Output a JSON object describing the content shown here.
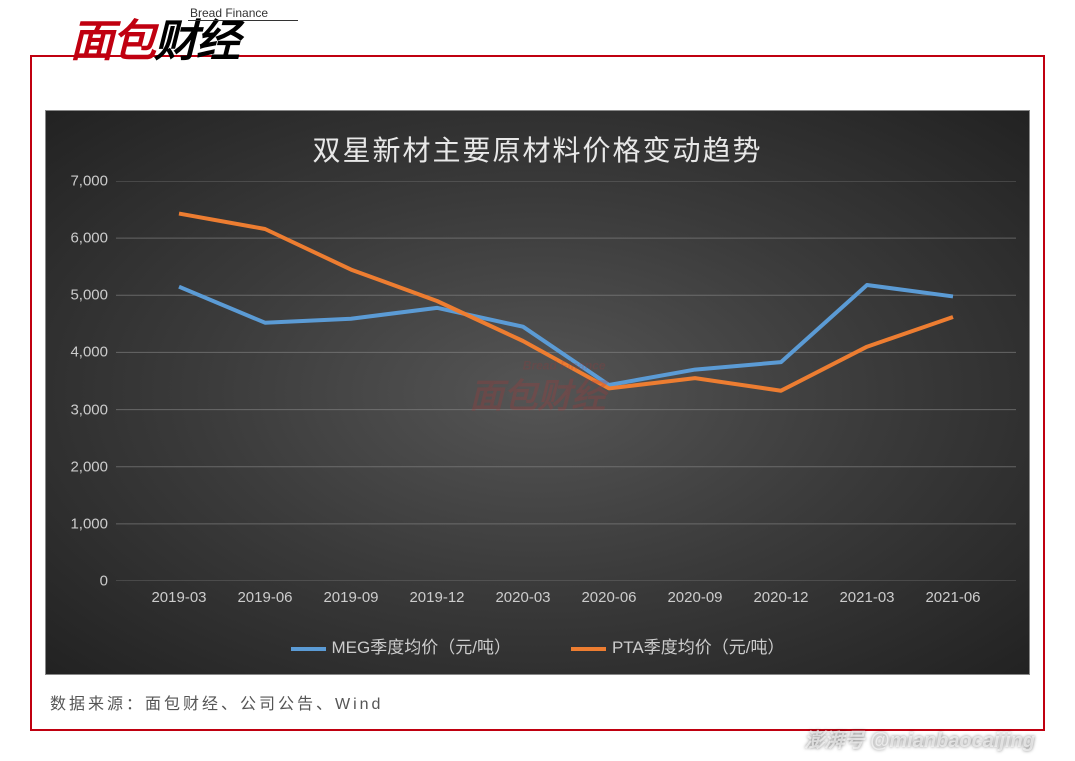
{
  "logo": {
    "cn_red": "面包",
    "cn_black": "财经",
    "en": "Bread Finance"
  },
  "chart": {
    "type": "line",
    "title": "双星新材主要原材料价格变动趋势",
    "background_gradient": [
      "#555555",
      "#3a3a3a",
      "#222222"
    ],
    "title_color": "#e8e8e8",
    "title_fontsize": 28,
    "axis_label_color": "#cccccc",
    "axis_label_fontsize": 15,
    "gridline_color": "#888888",
    "gridline_width": 1,
    "tickmark_color": "#888888",
    "line_width": 4,
    "ylim": [
      0,
      7000
    ],
    "ytick_step": 1000,
    "yticks": [
      0,
      1000,
      2000,
      3000,
      4000,
      5000,
      6000,
      7000
    ],
    "ytick_labels": [
      "0",
      "1,000",
      "2,000",
      "3,000",
      "4,000",
      "5,000",
      "6,000",
      "7,000"
    ],
    "categories": [
      "2019-03",
      "2019-06",
      "2019-09",
      "2019-12",
      "2020-03",
      "2020-06",
      "2020-09",
      "2020-12",
      "2021-03",
      "2021-06"
    ],
    "series": [
      {
        "name": "MEG季度均价（元/吨）",
        "color": "#5b9bd5",
        "values": [
          5150,
          4520,
          4590,
          4780,
          4450,
          3430,
          3700,
          3830,
          5180,
          4980
        ]
      },
      {
        "name": "PTA季度均价（元/吨）",
        "color": "#ed7d31",
        "values": [
          6430,
          6160,
          5450,
          4900,
          4200,
          3370,
          3550,
          3330,
          4100,
          4620
        ]
      }
    ],
    "legend_fontsize": 17,
    "watermark_center": "面包财经",
    "watermark_center_sub": "Bread Finance"
  },
  "source": "数据来源：面包财经、公司公告、Wind",
  "bottom_watermark": "澎湃号 @mianbaocaijing"
}
